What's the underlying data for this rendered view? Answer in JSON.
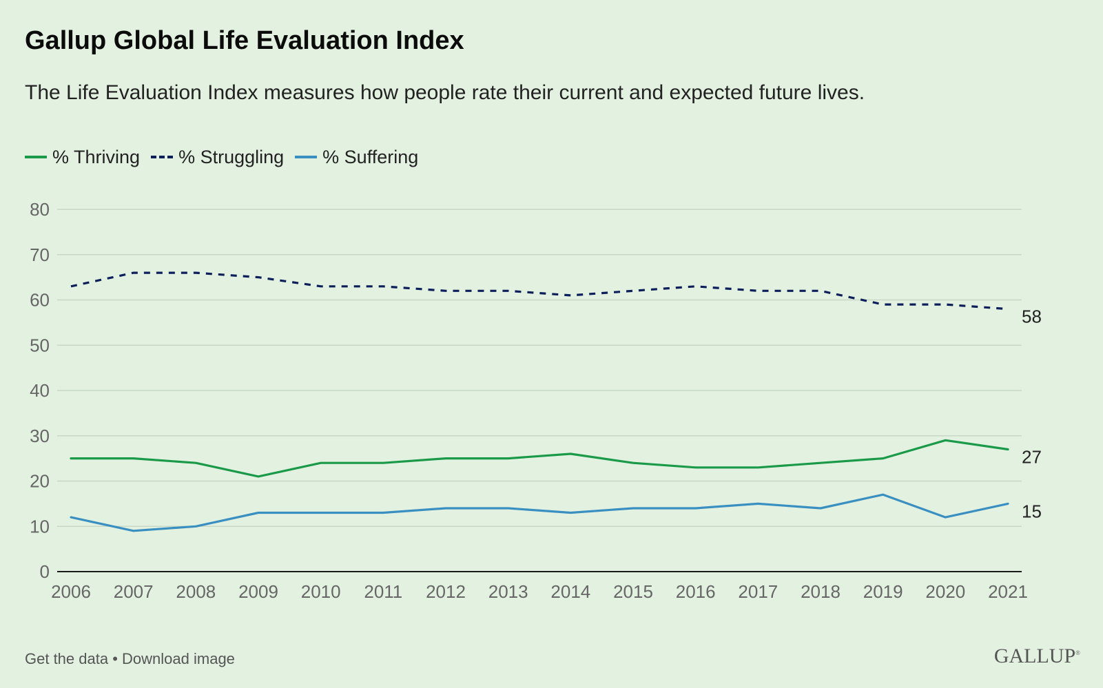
{
  "title": "Gallup Global Life Evaluation Index",
  "subtitle": "The Life Evaluation Index measures how people rate their current and expected future lives.",
  "footer": {
    "get_data": "Get the data",
    "separator": "•",
    "download": "Download image"
  },
  "logo": "GALLUP",
  "colors": {
    "background": "#e3f1e1",
    "thriving": "#1a9a49",
    "struggling": "#0c1f5a",
    "suffering": "#3a8fc1",
    "grid": "#c8d8c6",
    "axis": "#1a1a1a"
  },
  "chart_data": {
    "type": "line",
    "x": [
      "2006",
      "2007",
      "2008",
      "2009",
      "2010",
      "2011",
      "2012",
      "2013",
      "2014",
      "2015",
      "2016",
      "2017",
      "2018",
      "2019",
      "2020",
      "2021"
    ],
    "ylim": [
      0,
      80
    ],
    "yticks": [
      "0",
      "10",
      "20",
      "30",
      "40",
      "50",
      "60",
      "70",
      "80"
    ],
    "grid": true,
    "legend_position": "top-left",
    "series": [
      {
        "name": "% Thriving",
        "key": "thriving",
        "style": "solid",
        "values": [
          25,
          25,
          24,
          21,
          24,
          24,
          25,
          25,
          26,
          24,
          23,
          23,
          24,
          25,
          29,
          27
        ],
        "end_label": "27"
      },
      {
        "name": "% Struggling",
        "key": "struggling",
        "style": "dashed",
        "values": [
          63,
          66,
          66,
          65,
          63,
          63,
          62,
          62,
          61,
          62,
          63,
          62,
          62,
          59,
          59,
          58
        ],
        "end_label": "58"
      },
      {
        "name": "% Suffering",
        "key": "suffering",
        "style": "solid",
        "values": [
          12,
          9,
          10,
          13,
          13,
          13,
          14,
          14,
          13,
          14,
          14,
          15,
          14,
          17,
          12,
          15
        ],
        "end_label": "15"
      }
    ]
  }
}
